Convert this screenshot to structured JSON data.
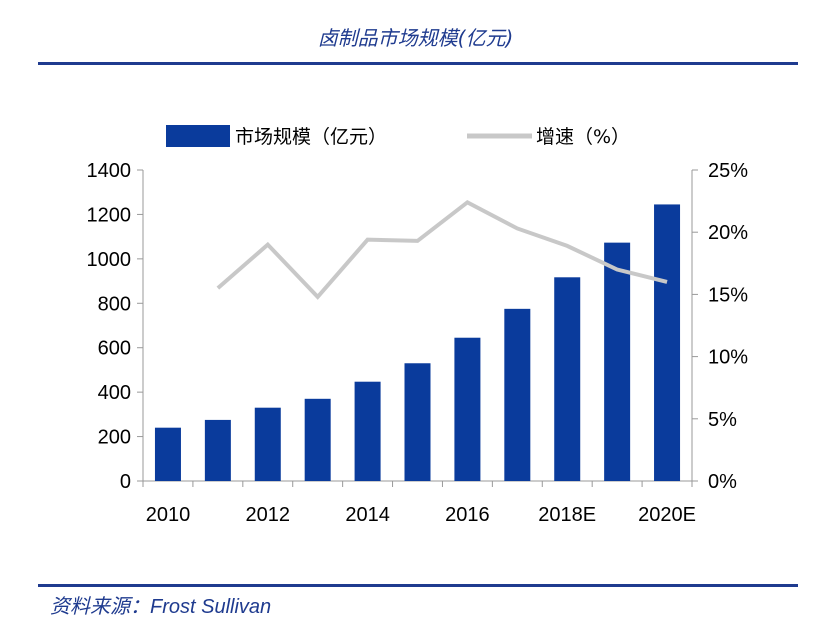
{
  "header": {
    "title": "卤制品市场规模(亿元)"
  },
  "footer": {
    "source_label": "资料来源：",
    "source_name": "Frost Sullivan"
  },
  "colors": {
    "bar": "#0a3b9c",
    "line": "#c8c8c8",
    "accent": "#1f3b8f"
  },
  "chart_data": {
    "type": "bar",
    "title": "卤制品市场规模(亿元)",
    "categories": [
      "2010",
      "2011",
      "2012",
      "2013",
      "2014",
      "2015",
      "2016",
      "2017",
      "2018E",
      "2019E",
      "2020E"
    ],
    "x_tick_labels": [
      "2010",
      "2012",
      "2014",
      "2016",
      "2018E",
      "2020E"
    ],
    "series": [
      {
        "name": "市场规模（亿元）",
        "type": "bar",
        "axis": "left",
        "values": [
          240,
          275,
          330,
          370,
          447,
          530,
          645,
          775,
          917,
          1073,
          1245
        ]
      },
      {
        "name": "增速（%）",
        "type": "line",
        "axis": "right",
        "values": [
          null,
          15.5,
          19.0,
          14.8,
          19.4,
          19.3,
          22.4,
          20.3,
          18.9,
          17.0,
          16.0
        ]
      }
    ],
    "y_left": {
      "min": 0,
      "max": 1400,
      "ticks": [
        0,
        200,
        400,
        600,
        800,
        1000,
        1200,
        1400
      ]
    },
    "y_right": {
      "min": 0,
      "max": 25,
      "ticks": [
        "0%",
        "5%",
        "10%",
        "15%",
        "20%",
        "25%"
      ]
    },
    "legend_position": "top",
    "grid": false
  }
}
